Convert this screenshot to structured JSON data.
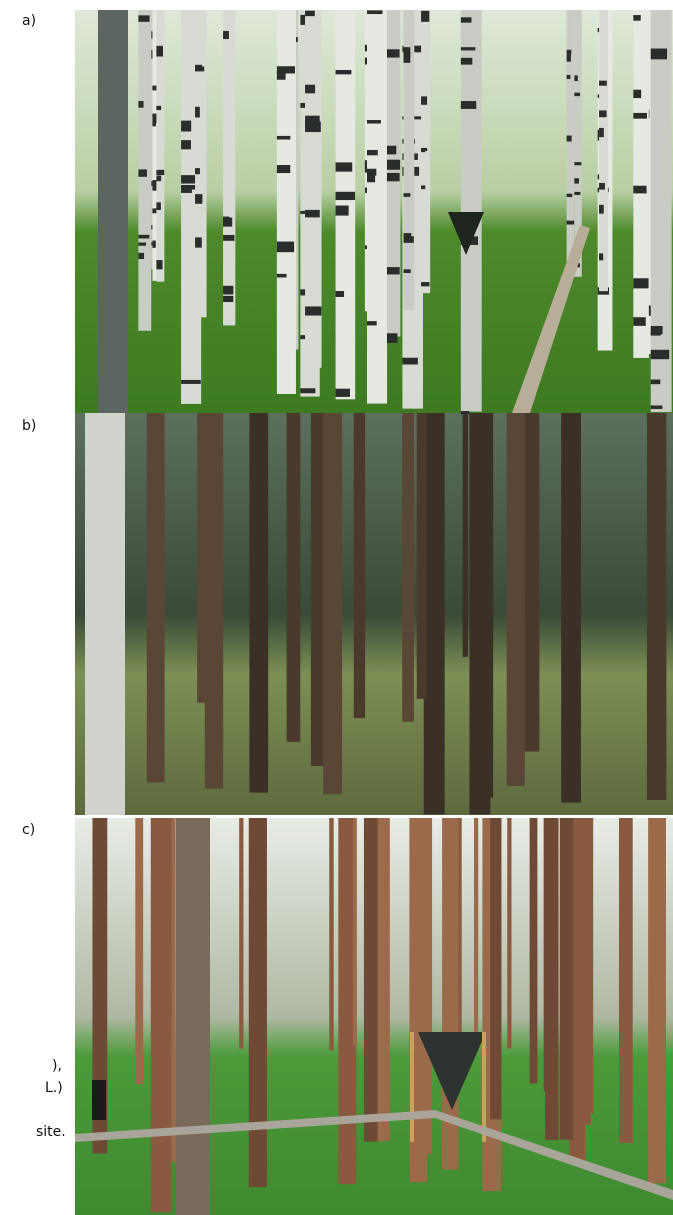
{
  "panels": [
    {
      "label": "a)"
    },
    {
      "label": "b)"
    },
    {
      "label": "c)"
    }
  ],
  "caption_fragments": [
    "),",
    "L.)",
    "site."
  ]
}
